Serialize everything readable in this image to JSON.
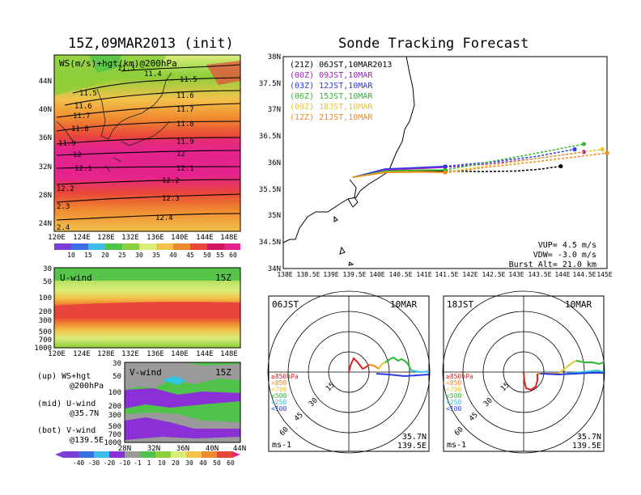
{
  "left_title": "15Z,09MAR2013 (init)",
  "right_title": "Sonde Tracking Forecast",
  "colors": {
    "ws_band_1": "#f6e9a0",
    "ws_band_2": "#d9ed7a",
    "ws_band_3": "#8ccf3a",
    "ws_band_4": "#f2c24a",
    "ws_band_5": "#ef8a30",
    "ws_band_6": "#e9453a",
    "ws_band_7": "#d1175e",
    "ws_band_8": "#e5238f",
    "v_purple": "#8b2fd6",
    "v_grey": "#9a9a9a",
    "v_green": "#4fc34a"
  },
  "map_panel": {
    "label": "WS(m/s)+hgt(km)@200hPa",
    "lat_ticks": [
      "44N",
      "40N",
      "36N",
      "32N",
      "28N",
      "24N"
    ],
    "lon_ticks": [
      "120E",
      "124E",
      "128E",
      "132E",
      "136E",
      "140E",
      "144E",
      "148E"
    ],
    "height_labels": [
      "11.3",
      "11.4",
      "11.5",
      "11.5",
      "11.6",
      "11.6",
      "11.7",
      "11.7",
      "11.8",
      "11.8",
      "11.9",
      "11.9",
      "12",
      "12",
      "12.1",
      "12.1",
      "12.2",
      "12.2",
      "12.3",
      "2.3",
      "12.4",
      "2.4"
    ],
    "colorbar_labels": [
      "10",
      "15",
      "20",
      "25",
      "30",
      "35",
      "40",
      "45",
      "50",
      "55",
      "60"
    ]
  },
  "uwind_panel": {
    "label": "U-wind",
    "time": "15Z",
    "p_ticks": [
      "30",
      "50",
      "100",
      "200",
      "300",
      "500",
      "700",
      "1000"
    ],
    "lon_ticks": [
      "120E",
      "124E",
      "128E",
      "132E",
      "136E",
      "140E",
      "144E",
      "148E"
    ]
  },
  "vwind_panel": {
    "label": "V-wind",
    "time": "15Z",
    "p_ticks": [
      "30",
      "50",
      "100",
      "200",
      "300",
      "500",
      "700",
      "1000"
    ],
    "lat_ticks": [
      "28N",
      "32N",
      "36N",
      "40N",
      "44N"
    ]
  },
  "notes": {
    "up": "(up) WS+hgt",
    "up2": "@200hPa",
    "mid": "(mid) U-wind",
    "mid2": "@35.7N",
    "bot": "(bot) V-wind",
    "bot2": "@139.5E"
  },
  "bottom_colorbar_labels": [
    "-40",
    "-30",
    "-20",
    "-10",
    "-1",
    "1",
    "10",
    "20",
    "30",
    "40",
    "50",
    "60"
  ],
  "track": {
    "lat_ticks": [
      "38N",
      "37.5N",
      "37N",
      "36.5N",
      "36N",
      "35.5N",
      "35N",
      "34.5N",
      "34N"
    ],
    "lon_ticks": [
      "138E",
      "138.5E",
      "139E",
      "139.5E",
      "140E",
      "140.5E",
      "141E",
      "141.5E",
      "142E",
      "142.5E",
      "143E",
      "143.5E",
      "144E",
      "144.5E",
      "145E"
    ],
    "legend": [
      {
        "text": "(21Z) 06JST,10MAR2013",
        "color": "#000000"
      },
      {
        "text": "(00Z) 09JST,10MAR",
        "color": "#a31cc2"
      },
      {
        "text": "(03Z) 12JST,10MAR",
        "color": "#2a3be6"
      },
      {
        "text": "(06Z) 15JST,10MAR",
        "color": "#2eb82e"
      },
      {
        "text": "(09Z) 18JST,10MAR",
        "color": "#e8c62a"
      },
      {
        "text": "(12Z) 21JST,10MAR",
        "color": "#f08a1c"
      }
    ],
    "info1": "VUP= 4.5 m/s",
    "info2": "VDW= -3.0 m/s",
    "info3": "Burst Alt= 21.0 km"
  },
  "chart_data": {
    "type": "line",
    "title": "Sonde Tracking Forecast",
    "xlim": [
      138,
      145
    ],
    "ylim": [
      34,
      38
    ],
    "launch": {
      "lon": 139.5,
      "lat": 35.7
    },
    "series": [
      {
        "name": "(21Z) 06JST,10MAR2013",
        "x": [
          139.5,
          140.2,
          141.0,
          141.5,
          142.3,
          143.0,
          143.5,
          144.0
        ],
        "y": [
          35.72,
          35.84,
          35.85,
          35.84,
          35.83,
          35.84,
          35.87,
          35.93
        ]
      },
      {
        "name": "(00Z) 09JST,10MAR",
        "x": [
          139.5,
          140.2,
          141.0,
          141.5,
          142.5,
          143.5,
          144.5
        ],
        "y": [
          35.72,
          35.86,
          35.89,
          35.91,
          35.98,
          36.08,
          36.2
        ]
      },
      {
        "name": "(03Z) 12JST,10MAR",
        "x": [
          139.5,
          140.2,
          141.0,
          141.5,
          142.5,
          143.5,
          144.3
        ],
        "y": [
          35.72,
          35.88,
          35.91,
          35.93,
          36.01,
          36.12,
          36.25
        ]
      },
      {
        "name": "(06Z) 15JST,10MAR",
        "x": [
          139.5,
          140.2,
          141.0,
          141.5,
          142.5,
          143.5,
          144.5
        ],
        "y": [
          35.72,
          35.84,
          35.86,
          35.86,
          36.02,
          36.18,
          36.35
        ]
      },
      {
        "name": "(09Z) 18JST,10MAR",
        "x": [
          139.5,
          140.2,
          141.0,
          141.5,
          142.5,
          143.5,
          144.9
        ],
        "y": [
          35.72,
          35.82,
          35.83,
          35.82,
          35.95,
          36.08,
          36.25
        ]
      },
      {
        "name": "(12Z) 21JST,10MAR",
        "x": [
          139.5,
          140.2,
          141.0,
          141.5,
          142.5,
          143.5,
          145.0
        ],
        "y": [
          35.72,
          35.81,
          35.82,
          35.81,
          35.92,
          36.02,
          36.18
        ]
      }
    ]
  },
  "polar_left": {
    "time": "06JST",
    "date": "10MAR",
    "rings": [
      "15",
      "30",
      "45",
      "60"
    ],
    "legend": [
      {
        "text": "≥850hPa",
        "color": "#e02020"
      },
      {
        "text": "<850",
        "color": "#f08a1c"
      },
      {
        "text": "<700",
        "color": "#e8c62a"
      },
      {
        "text": "<500",
        "color": "#2eb82e"
      },
      {
        "text": "<250",
        "color": "#2ec7e6"
      },
      {
        "text": "<100",
        "color": "#2a3be6"
      }
    ],
    "units": "ms-1",
    "lat": "35.7N",
    "lon": "139.5E"
  },
  "polar_right": {
    "time": "18JST",
    "date": "10MAR",
    "rings": [
      "15",
      "30",
      "45",
      "60"
    ],
    "legend": [
      {
        "text": "≥850hPa",
        "color": "#e02020"
      },
      {
        "text": "<850",
        "color": "#f08a1c"
      },
      {
        "text": "<700",
        "color": "#e8c62a"
      },
      {
        "text": "<500",
        "color": "#2eb82e"
      },
      {
        "text": "<250",
        "color": "#2ec7e6"
      },
      {
        "text": "<100",
        "color": "#2a3be6"
      }
    ],
    "units": "ms-1",
    "lat": "35.7N",
    "lon": "139.5E"
  }
}
